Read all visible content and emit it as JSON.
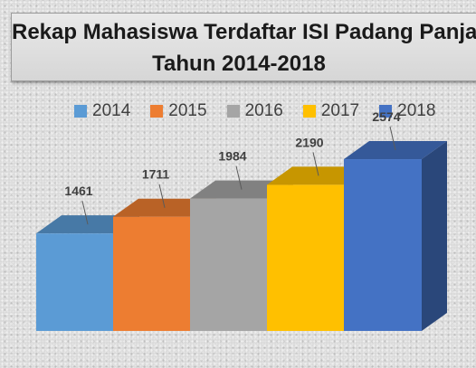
{
  "chart_data": {
    "type": "bar",
    "title_lines": [
      "Rekap Mahasiswa Terdaftar ISI Padang Panja",
      "Tahun 2014-2018"
    ],
    "categories": [
      "2014",
      "2015",
      "2016",
      "2017",
      "2018"
    ],
    "values": [
      1461,
      1711,
      1984,
      2190,
      2574
    ],
    "data_labels": [
      "1461",
      "1711",
      "1984",
      "2190",
      "2574"
    ],
    "colors": [
      "#5b9bd5",
      "#ed7d31",
      "#a5a5a5",
      "#ffc000",
      "#4472c4"
    ],
    "legend": {
      "position": "top",
      "entries": [
        "2014",
        "2015",
        "2016",
        "2017",
        "2018"
      ]
    },
    "grid": false,
    "ylim": [
      0,
      3000
    ]
  }
}
